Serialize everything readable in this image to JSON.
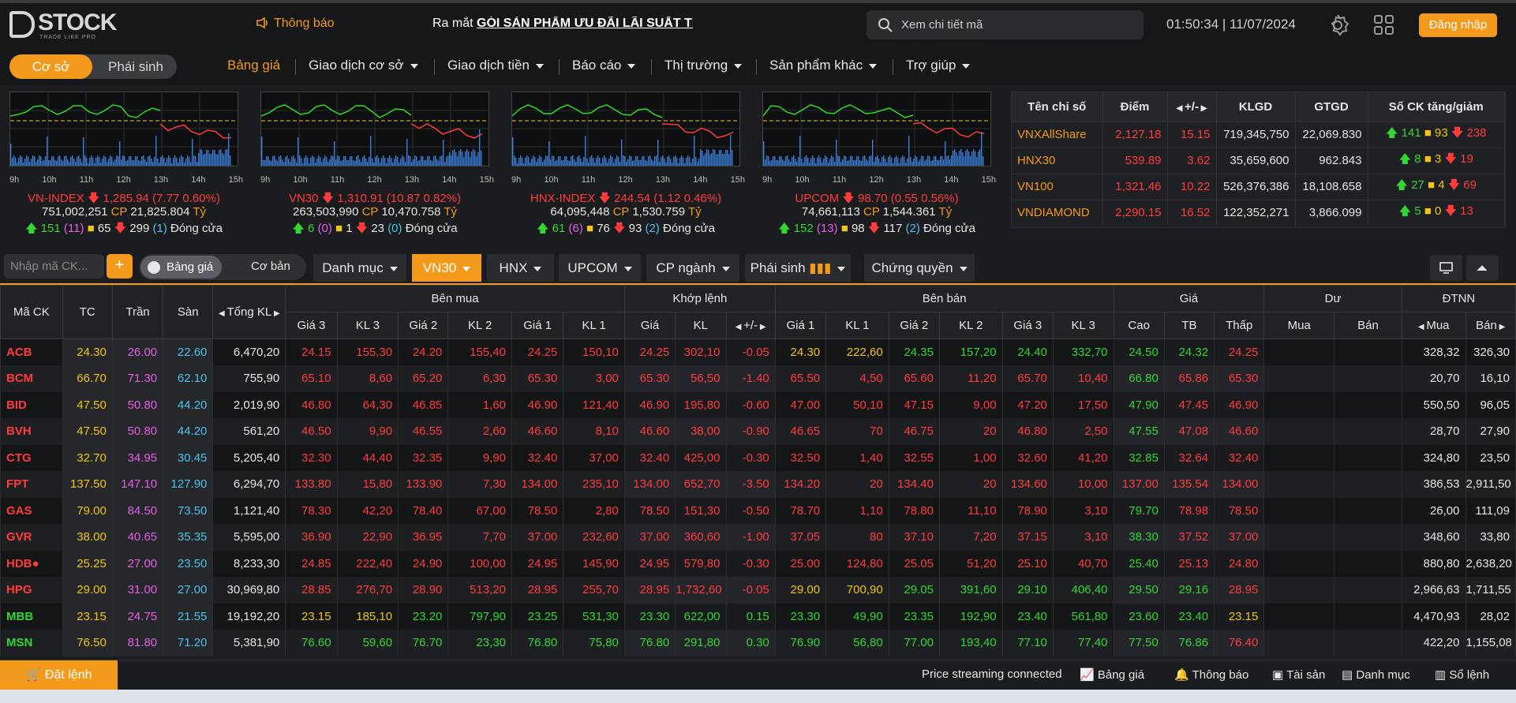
{
  "header": {
    "brand": "STOCK",
    "brand_sub": "TRADE LIKE PRO",
    "notice": "Thông báo",
    "marquee_prefix": "Ra mắt ",
    "marquee_bold": "GÓI SẢN PHẨM ƯU ĐÃI LÃI SUẤT THE",
    "search_placeholder": "Xem chi tiết mã",
    "clock": "01:50:34 | 11/07/2024",
    "login": "Đăng nhập"
  },
  "nav": {
    "segments": [
      "Cơ sở",
      "Phái sinh"
    ],
    "menu": [
      "Bảng giá",
      "Giao dịch cơ sở",
      "Giao dịch tiền",
      "Báo cáo",
      "Thị trường",
      "Sản phẩm khác",
      "Trợ giúp"
    ]
  },
  "hours": [
    "9h",
    "10h",
    "11h",
    "12h",
    "13h",
    "14h",
    "15h"
  ],
  "mini_charts": [
    {
      "name": "VN-INDEX",
      "value": "1,285.94",
      "change": "(7.77 0.60%)",
      "volume": "751,002,251",
      "cp": "CP",
      "amount": "21,825.804",
      "unit": "Tỷ",
      "up": "151",
      "ceil": "(11)",
      "ref": "65",
      "down": "299",
      "floor": "(1)",
      "status": "Đóng cửa"
    },
    {
      "name": "VN30",
      "value": "1,310.91",
      "change": "(10.87 0.82%)",
      "volume": "263,503,990",
      "cp": "CP",
      "amount": "10,470.758",
      "unit": "Tỷ",
      "up": "6",
      "ceil": "(0)",
      "ref": "1",
      "down": "23",
      "floor": "(0)",
      "status": "Đóng cửa"
    },
    {
      "name": "HNX-INDEX",
      "value": "244.54",
      "change": "(1.12 0.46%)",
      "volume": "64,095,448",
      "cp": "CP",
      "amount": "1,530.759",
      "unit": "Tỷ",
      "up": "61",
      "ceil": "(6)",
      "ref": "76",
      "down": "93",
      "floor": "(2)",
      "status": "Đóng cửa"
    },
    {
      "name": "UPCOM",
      "value": "98.70",
      "change": "(0.55 0.56%)",
      "volume": "74,661,113",
      "cp": "CP",
      "amount": "1,544.361",
      "unit": "Tỷ",
      "up": "152",
      "ceil": "(13)",
      "ref": "98",
      "down": "117",
      "floor": "(2)",
      "status": "Đóng cửa"
    }
  ],
  "index_table": {
    "headers": [
      "Tên chỉ số",
      "Điểm",
      "+/-",
      "KLGD",
      "GTGD",
      "Số CK tăng/giảm"
    ],
    "rows": [
      {
        "name": "VNXAllShare",
        "point": "2,127.18",
        "change": "15.15",
        "klgd": "719,345,750",
        "gtgd": "22,069.830",
        "up": "141",
        "ref": "93",
        "down": "238"
      },
      {
        "name": "HNX30",
        "point": "539.89",
        "change": "3.62",
        "klgd": "35,659,600",
        "gtgd": "962.843",
        "up": "8",
        "ref": "3",
        "down": "19"
      },
      {
        "name": "VN100",
        "point": "1,321.46",
        "change": "10.22",
        "klgd": "526,376,386",
        "gtgd": "18,108.658",
        "up": "27",
        "ref": "4",
        "down": "69"
      },
      {
        "name": "VNDIAMOND",
        "point": "2,290.15",
        "change": "16.52",
        "klgd": "122,352,271",
        "gtgd": "3,866.099",
        "up": "5",
        "ref": "0",
        "down": "13"
      }
    ]
  },
  "toolbar": {
    "input_placeholder": "Nhập mã CK...",
    "plus": "+",
    "toggle": [
      "Bảng giá",
      "Cơ bản"
    ],
    "tabs": [
      "Danh mục",
      "VN30",
      "HNX",
      "UPCOM",
      "CP ngành",
      "Phái sinh",
      "Chứng quyền"
    ]
  },
  "table": {
    "head_groups": [
      "Mã CK",
      "TC",
      "Trần",
      "Sàn",
      "Tổng KL",
      "Bên mua",
      "Khớp lệnh",
      "Bên bán",
      "Giá",
      "Dư",
      "ĐTNN"
    ],
    "sub_headers": [
      "Giá 3",
      "KL 3",
      "Giá 2",
      "KL 2",
      "Giá 1",
      "KL 1",
      "Giá",
      "KL",
      "+/-",
      "Giá 1",
      "KL 1",
      "Giá 2",
      "KL 2",
      "Giá 3",
      "KL 3",
      "Cao",
      "TB",
      "Thấp",
      "Mua",
      "Bán",
      "Mua",
      "Bán"
    ],
    "rows": [
      [
        "ACB",
        "24.30",
        "26.00",
        "22.60",
        "6,470,20",
        "24.15",
        "155,30",
        "24.20",
        "155,40",
        "24.25",
        "150,10",
        "24.25",
        "302,10",
        "-0.05",
        "24.30",
        "222,60",
        "24.35",
        "157,20",
        "24.40",
        "332,70",
        "24.50",
        "24.32",
        "24.25",
        "",
        "",
        "328,32",
        "326,30"
      ],
      [
        "BCM",
        "66.70",
        "71.30",
        "62.10",
        "755,90",
        "65.10",
        "8,60",
        "65.20",
        "6,30",
        "65.30",
        "3,00",
        "65.30",
        "56,50",
        "-1.40",
        "65.50",
        "4,50",
        "65.60",
        "11,20",
        "65.70",
        "10,40",
        "66.80",
        "65.86",
        "65.30",
        "",
        "",
        "20,70",
        "16,10"
      ],
      [
        "BID",
        "47.50",
        "50.80",
        "44.20",
        "2,019,90",
        "46.80",
        "64,30",
        "46.85",
        "1,60",
        "46.90",
        "121,40",
        "46.90",
        "195,80",
        "-0.60",
        "47.00",
        "50,10",
        "47.15",
        "9,00",
        "47.20",
        "17,50",
        "47.90",
        "47.45",
        "46.90",
        "",
        "",
        "550,50",
        "96,05"
      ],
      [
        "BVH",
        "47.50",
        "50.80",
        "44.20",
        "561,20",
        "46.50",
        "9,90",
        "46.55",
        "2,60",
        "46.60",
        "8,10",
        "46.60",
        "38,00",
        "-0.90",
        "46.65",
        "70",
        "46.75",
        "20",
        "46.80",
        "2,50",
        "47.55",
        "47.08",
        "46.60",
        "",
        "",
        "28,70",
        "27,90"
      ],
      [
        "CTG",
        "32.70",
        "34.95",
        "30.45",
        "5,205,40",
        "32.30",
        "44,40",
        "32.35",
        "9,90",
        "32.40",
        "37,00",
        "32.40",
        "425,00",
        "-0.30",
        "32.50",
        "1,40",
        "32.55",
        "1,00",
        "32.60",
        "41,20",
        "32.85",
        "32.64",
        "32.40",
        "",
        "",
        "324,80",
        "23,50"
      ],
      [
        "FPT",
        "137.50",
        "147.10",
        "127.90",
        "6,294,70",
        "133.80",
        "15,80",
        "133.90",
        "7,30",
        "134.00",
        "235,10",
        "134.00",
        "652,70",
        "-3.50",
        "134.20",
        "20",
        "134.40",
        "20",
        "134.60",
        "10,00",
        "137.00",
        "135.54",
        "134.00",
        "",
        "",
        "386,53",
        "2,911,50"
      ],
      [
        "GAS",
        "79.00",
        "84.50",
        "73.50",
        "1,121,40",
        "78.30",
        "42,20",
        "78.40",
        "67,00",
        "78.50",
        "2,80",
        "78.50",
        "151,30",
        "-0.50",
        "78.70",
        "1,10",
        "78.80",
        "11,10",
        "78.90",
        "3,10",
        "79.70",
        "78.98",
        "78.50",
        "",
        "",
        "26,00",
        "111,09"
      ],
      [
        "GVR",
        "38.00",
        "40.65",
        "35.35",
        "5,595,00",
        "36.90",
        "22,90",
        "36.95",
        "7,70",
        "37.00",
        "232,60",
        "37.00",
        "360,60",
        "-1.00",
        "37.05",
        "80",
        "37.10",
        "7,20",
        "37.15",
        "3,10",
        "38.30",
        "37.52",
        "37.00",
        "",
        "",
        "348,60",
        "33,80"
      ],
      [
        "HDB●",
        "25.25",
        "27.00",
        "23.50",
        "8,233,30",
        "24.85",
        "222,40",
        "24.90",
        "100,00",
        "24.95",
        "145,90",
        "24.95",
        "579,80",
        "-0.30",
        "25.00",
        "124,80",
        "25.05",
        "51,20",
        "25.10",
        "40,70",
        "25.40",
        "25.13",
        "24.80",
        "",
        "",
        "880,80",
        "2,638,20"
      ],
      [
        "HPG",
        "29.00",
        "31.00",
        "27.00",
        "30,969,80",
        "28.85",
        "276,70",
        "28.90",
        "513,20",
        "28.95",
        "255,70",
        "28.95",
        "1,732,60",
        "-0.05",
        "29.00",
        "700,90",
        "29.05",
        "391,60",
        "29.10",
        "406,40",
        "29.50",
        "29.16",
        "28.95",
        "",
        "",
        "2,966,63",
        "1,711,55"
      ],
      [
        "MBB",
        "23.15",
        "24.75",
        "21.55",
        "19,192,20",
        "23.15",
        "185,10",
        "23.20",
        "797,90",
        "23.25",
        "531,30",
        "23.30",
        "622,00",
        "0.15",
        "23.30",
        "49,90",
        "23.35",
        "192,90",
        "23.40",
        "561,80",
        "23.60",
        "23.40",
        "23.15",
        "",
        "",
        "4,470,93",
        "28,02"
      ],
      [
        "MSN",
        "76.50",
        "81.80",
        "71.20",
        "5,381,90",
        "76.60",
        "59,60",
        "76.70",
        "23,30",
        "76.80",
        "75,80",
        "76.80",
        "291,80",
        "0.30",
        "76.90",
        "56,80",
        "77.00",
        "193,40",
        "77.10",
        "77,40",
        "77.50",
        "76.86",
        "76.40",
        "",
        "",
        "422,20",
        "1,155,08"
      ]
    ],
    "row_colors": [
      [
        "r",
        "y",
        "m",
        "c",
        "w",
        "r",
        "r",
        "r",
        "r",
        "r",
        "r",
        "r",
        "r",
        "r",
        "y",
        "y",
        "g",
        "g",
        "g",
        "g",
        "g",
        "g",
        "r",
        "w",
        "w",
        "w",
        "w"
      ],
      [
        "r",
        "y",
        "m",
        "c",
        "w",
        "r",
        "r",
        "r",
        "r",
        "r",
        "r",
        "r",
        "r",
        "r",
        "r",
        "r",
        "r",
        "r",
        "r",
        "r",
        "g",
        "r",
        "r",
        "w",
        "w",
        "w",
        "w"
      ],
      [
        "r",
        "y",
        "m",
        "c",
        "w",
        "r",
        "r",
        "r",
        "r",
        "r",
        "r",
        "r",
        "r",
        "r",
        "r",
        "r",
        "r",
        "r",
        "r",
        "r",
        "g",
        "r",
        "r",
        "w",
        "w",
        "w",
        "w"
      ],
      [
        "r",
        "y",
        "m",
        "c",
        "w",
        "r",
        "r",
        "r",
        "r",
        "r",
        "r",
        "r",
        "r",
        "r",
        "r",
        "r",
        "r",
        "r",
        "r",
        "r",
        "g",
        "r",
        "r",
        "w",
        "w",
        "w",
        "w"
      ],
      [
        "r",
        "y",
        "m",
        "c",
        "w",
        "r",
        "r",
        "r",
        "r",
        "r",
        "r",
        "r",
        "r",
        "r",
        "r",
        "r",
        "r",
        "r",
        "r",
        "r",
        "g",
        "r",
        "r",
        "w",
        "w",
        "w",
        "w"
      ],
      [
        "r",
        "y",
        "m",
        "c",
        "w",
        "r",
        "r",
        "r",
        "r",
        "r",
        "r",
        "r",
        "r",
        "r",
        "r",
        "r",
        "r",
        "r",
        "r",
        "r",
        "r",
        "r",
        "r",
        "w",
        "w",
        "w",
        "w"
      ],
      [
        "r",
        "y",
        "m",
        "c",
        "w",
        "r",
        "r",
        "r",
        "r",
        "r",
        "r",
        "r",
        "r",
        "r",
        "r",
        "r",
        "r",
        "r",
        "r",
        "r",
        "g",
        "r",
        "r",
        "w",
        "w",
        "w",
        "w"
      ],
      [
        "r",
        "y",
        "m",
        "c",
        "w",
        "r",
        "r",
        "r",
        "r",
        "r",
        "r",
        "r",
        "r",
        "r",
        "r",
        "r",
        "r",
        "r",
        "r",
        "r",
        "g",
        "r",
        "r",
        "w",
        "w",
        "w",
        "w"
      ],
      [
        "r",
        "y",
        "m",
        "c",
        "w",
        "r",
        "r",
        "r",
        "r",
        "r",
        "r",
        "r",
        "r",
        "r",
        "r",
        "r",
        "r",
        "r",
        "r",
        "r",
        "g",
        "r",
        "r",
        "w",
        "w",
        "w",
        "w"
      ],
      [
        "r",
        "y",
        "m",
        "c",
        "w",
        "r",
        "r",
        "r",
        "r",
        "r",
        "r",
        "r",
        "r",
        "r",
        "y",
        "y",
        "g",
        "g",
        "g",
        "g",
        "g",
        "g",
        "r",
        "w",
        "w",
        "w",
        "w"
      ],
      [
        "g",
        "y",
        "m",
        "c",
        "w",
        "y",
        "y",
        "g",
        "g",
        "g",
        "g",
        "g",
        "g",
        "g",
        "g",
        "g",
        "g",
        "g",
        "g",
        "g",
        "g",
        "g",
        "y",
        "w",
        "w",
        "w",
        "w"
      ],
      [
        "g",
        "y",
        "m",
        "c",
        "w",
        "g",
        "g",
        "g",
        "g",
        "g",
        "g",
        "g",
        "g",
        "g",
        "g",
        "g",
        "g",
        "g",
        "g",
        "g",
        "g",
        "g",
        "r",
        "w",
        "w",
        "w",
        "w"
      ]
    ]
  },
  "footer": {
    "order": "Đặt lệnh",
    "status": "Price streaming connected",
    "items": [
      "Bảng giá",
      "Thông báo",
      "Tài sản",
      "Danh mục",
      "Sổ lệnh"
    ]
  },
  "colors": {
    "accent": "#f39a1d",
    "up": "#33d633",
    "down": "#ff3b3b",
    "ref": "#f0c419",
    "ceil": "#e65de6",
    "floor": "#4cc3e8"
  }
}
